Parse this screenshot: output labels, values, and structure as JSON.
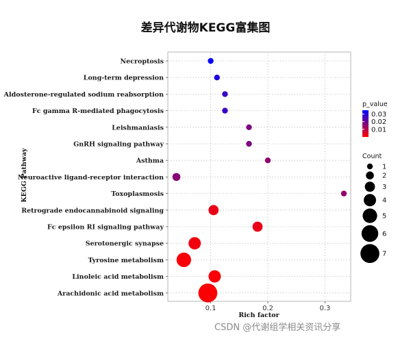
{
  "watermark": "CSDN @代谢组学相关资讯分享",
  "chart_data": {
    "type": "scatter",
    "title": "差异代谢物KEGG富集图",
    "xlabel": "Rich factor",
    "ylabel": "KEGG Pathway",
    "xlim": [
      0.025,
      0.345
    ],
    "xticks": [
      0.1,
      0.2,
      0.3
    ],
    "xtick_labels": [
      "0.1",
      "0.2",
      "0.3"
    ],
    "grid": true,
    "color_legend": {
      "title": "p_value",
      "ticks": [
        0.03,
        0.02,
        0.01
      ],
      "tick_labels": [
        "0.03",
        "0.02",
        "0.01"
      ],
      "range": [
        0.0,
        0.035
      ],
      "low_color": "#ff0000",
      "high_color": "#0000ff"
    },
    "size_legend": {
      "title": "Count",
      "values": [
        1,
        2,
        3,
        4,
        5,
        6,
        7
      ],
      "labels": [
        "1",
        "2",
        "3",
        "4",
        "5",
        "6",
        "7"
      ]
    },
    "points": [
      {
        "pathway": "Necroptosis",
        "rich_factor": 0.1,
        "count": 1,
        "p_value": 0.034
      },
      {
        "pathway": "Long-term depression",
        "rich_factor": 0.111,
        "count": 1,
        "p_value": 0.031
      },
      {
        "pathway": "Aldosterone-regulated sodium reabsorption",
        "rich_factor": 0.125,
        "count": 1,
        "p_value": 0.027
      },
      {
        "pathway": "Fc gamma R-mediated phagocytosis",
        "rich_factor": 0.125,
        "count": 1,
        "p_value": 0.027
      },
      {
        "pathway": "Leishmaniasis",
        "rich_factor": 0.167,
        "count": 1,
        "p_value": 0.018
      },
      {
        "pathway": "GnRH signaling pathway",
        "rich_factor": 0.167,
        "count": 1,
        "p_value": 0.018
      },
      {
        "pathway": "Asthma",
        "rich_factor": 0.2,
        "count": 1,
        "p_value": 0.015
      },
      {
        "pathway": "Neuroactive ligand-receptor interaction",
        "rich_factor": 0.04,
        "count": 2,
        "p_value": 0.016
      },
      {
        "pathway": "Toxoplasmosis",
        "rich_factor": 0.333,
        "count": 1,
        "p_value": 0.015
      },
      {
        "pathway": "Retrograde endocannabinoid signaling",
        "rich_factor": 0.105,
        "count": 3,
        "p_value": 0.003
      },
      {
        "pathway": "Fc epsilon RI signaling pathway",
        "rich_factor": 0.182,
        "count": 3,
        "p_value": 0.003
      },
      {
        "pathway": "Serotonergic synapse",
        "rich_factor": 0.072,
        "count": 4,
        "p_value": 0.002
      },
      {
        "pathway": "Tyrosine metabolism",
        "rich_factor": 0.053,
        "count": 5,
        "p_value": 0.001
      },
      {
        "pathway": "Linoleic acid metabolism",
        "rich_factor": 0.107,
        "count": 4,
        "p_value": 0.001
      },
      {
        "pathway": "Arachidonic acid metabolism",
        "rich_factor": 0.095,
        "count": 7,
        "p_value": 0.0005
      }
    ]
  }
}
